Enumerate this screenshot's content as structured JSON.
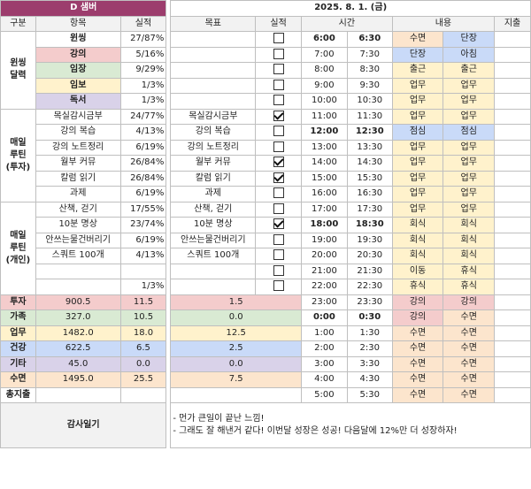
{
  "header": {
    "section_title": "D 샘버",
    "date": "2025. 8. 1. (금)",
    "left_cols": [
      "구분",
      "항목",
      "실적"
    ],
    "right_cols": [
      "목표",
      "실적",
      "시간",
      "내용",
      "지출"
    ]
  },
  "categories": {
    "wins": "윈씽\n달력",
    "invest": "매일\n루틴\n(투자)",
    "pleasure": "매일\n루틴\n(개인)"
  },
  "colors": {
    "banner": "#9c3d6d",
    "pink": "#f4cccc",
    "green": "#d9ead3",
    "yellow": "#fff2cc",
    "purple": "#d9d2e9",
    "orange": "#fce5cd",
    "blue": "#c9daf8",
    "gray": "#efefef"
  },
  "rows": [
    {
      "item": "윈씽",
      "item_bold": true,
      "item_bg": "",
      "result": "27/87%",
      "goal": "",
      "check": false,
      "start": "6:00",
      "end": "6:30",
      "time_bold": true,
      "plan": "수면",
      "plan_bg": "orange",
      "actual": "단장",
      "actual_bg": "blue"
    },
    {
      "item": "강의",
      "item_bold": true,
      "item_bg": "pink",
      "result": "5/16%",
      "goal": "",
      "check": false,
      "start": "7:00",
      "end": "7:30",
      "time_bold": false,
      "plan": "단장",
      "plan_bg": "blue",
      "actual": "아침",
      "actual_bg": "blue"
    },
    {
      "item": "임장",
      "item_bold": true,
      "item_bg": "green",
      "result": "9/29%",
      "goal": "",
      "check": false,
      "start": "8:00",
      "end": "8:30",
      "time_bold": false,
      "plan": "출근",
      "plan_bg": "yellow",
      "actual": "출근",
      "actual_bg": "yellow"
    },
    {
      "item": "임보",
      "item_bold": true,
      "item_bg": "yellow",
      "result": "1/3%",
      "goal": "",
      "check": false,
      "start": "9:00",
      "end": "9:30",
      "time_bold": false,
      "plan": "업무",
      "plan_bg": "yellow",
      "actual": "업무",
      "actual_bg": "yellow"
    },
    {
      "item": "독서",
      "item_bold": true,
      "item_bg": "purple",
      "result": "1/3%",
      "goal": "",
      "check": false,
      "start": "10:00",
      "end": "10:30",
      "time_bold": false,
      "plan": "업무",
      "plan_bg": "yellow",
      "actual": "업무",
      "actual_bg": "yellow"
    },
    {
      "item": "목실감시금부",
      "item_bold": false,
      "item_bg": "",
      "result": "24/77%",
      "goal": "목실감시금부",
      "check": true,
      "start": "11:00",
      "end": "11:30",
      "time_bold": false,
      "plan": "업무",
      "plan_bg": "yellow",
      "actual": "업무",
      "actual_bg": "yellow"
    },
    {
      "item": "강의 복습",
      "item_bold": false,
      "item_bg": "",
      "result": "4/13%",
      "goal": "강의 복습",
      "check": false,
      "start": "12:00",
      "end": "12:30",
      "time_bold": true,
      "plan": "점심",
      "plan_bg": "blue",
      "actual": "점심",
      "actual_bg": "blue"
    },
    {
      "item": "강의 노트정리",
      "item_bold": false,
      "item_bg": "",
      "result": "6/19%",
      "goal": "강의 노트정리",
      "check": false,
      "start": "13:00",
      "end": "13:30",
      "time_bold": false,
      "plan": "업무",
      "plan_bg": "yellow",
      "actual": "업무",
      "actual_bg": "yellow"
    },
    {
      "item": "월부 커뮤",
      "item_bold": false,
      "item_bg": "",
      "result": "26/84%",
      "goal": "월부 커뮤",
      "check": true,
      "start": "14:00",
      "end": "14:30",
      "time_bold": false,
      "plan": "업무",
      "plan_bg": "yellow",
      "actual": "업무",
      "actual_bg": "yellow"
    },
    {
      "item": "칼럼 읽기",
      "item_bold": false,
      "item_bg": "",
      "result": "26/84%",
      "goal": "칼럼 읽기",
      "check": true,
      "start": "15:00",
      "end": "15:30",
      "time_bold": false,
      "plan": "업무",
      "plan_bg": "yellow",
      "actual": "업무",
      "actual_bg": "yellow"
    },
    {
      "item": "과제",
      "item_bold": false,
      "item_bg": "",
      "result": "6/19%",
      "goal": "과제",
      "check": false,
      "start": "16:00",
      "end": "16:30",
      "time_bold": false,
      "plan": "업무",
      "plan_bg": "yellow",
      "actual": "업무",
      "actual_bg": "yellow"
    },
    {
      "item": "산책, 걷기",
      "item_bold": false,
      "item_bg": "",
      "result": "17/55%",
      "goal": "산책, 걷기",
      "check": false,
      "start": "17:00",
      "end": "17:30",
      "time_bold": false,
      "plan": "업무",
      "plan_bg": "yellow",
      "actual": "업무",
      "actual_bg": "yellow"
    },
    {
      "item": "10분 명상",
      "item_bold": false,
      "item_bg": "",
      "result": "23/74%",
      "goal": "10분 명상",
      "check": true,
      "start": "18:00",
      "end": "18:30",
      "time_bold": true,
      "plan": "회식",
      "plan_bg": "yellow",
      "actual": "회식",
      "actual_bg": "yellow"
    },
    {
      "item": "안쓰는물건버리기",
      "item_bold": false,
      "item_bg": "",
      "result": "6/19%",
      "goal": "안쓰는물건버리기",
      "check": false,
      "start": "19:00",
      "end": "19:30",
      "time_bold": false,
      "plan": "회식",
      "plan_bg": "yellow",
      "actual": "회식",
      "actual_bg": "yellow"
    },
    {
      "item": "스쿼트 100개",
      "item_bold": false,
      "item_bg": "",
      "result": "4/13%",
      "goal": "스쿼트 100개",
      "check": false,
      "start": "20:00",
      "end": "20:30",
      "time_bold": false,
      "plan": "회식",
      "plan_bg": "yellow",
      "actual": "회식",
      "actual_bg": "yellow"
    },
    {
      "item": "",
      "item_bold": false,
      "item_bg": "",
      "result": "",
      "goal": "",
      "check": false,
      "start": "21:00",
      "end": "21:30",
      "time_bold": false,
      "plan": "이동",
      "plan_bg": "yellow",
      "actual": "휴식",
      "actual_bg": "yellow"
    },
    {
      "item": "",
      "item_bold": false,
      "item_bg": "",
      "result": "1/3%",
      "goal": "",
      "check": false,
      "start": "22:00",
      "end": "22:30",
      "time_bold": false,
      "plan": "휴식",
      "plan_bg": "yellow",
      "actual": "휴식",
      "actual_bg": "yellow"
    }
  ],
  "summary": [
    {
      "label": "투자",
      "label_bg": "pink",
      "total": "900.5",
      "daily": "11.5",
      "goal": "1.5",
      "start": "23:00",
      "end": "23:30",
      "time_bold": false,
      "plan": "강의",
      "plan_bg": "pink",
      "actual": "강의",
      "actual_bg": "pink"
    },
    {
      "label": "가족",
      "label_bg": "green",
      "total": "327.0",
      "daily": "10.5",
      "goal": "0.0",
      "start": "0:00",
      "end": "0:30",
      "time_bold": true,
      "plan": "강의",
      "plan_bg": "pink",
      "actual": "수면",
      "actual_bg": "orange"
    },
    {
      "label": "업무",
      "label_bg": "yellow",
      "total": "1482.0",
      "daily": "18.0",
      "goal": "12.5",
      "start": "1:00",
      "end": "1:30",
      "time_bold": false,
      "plan": "수면",
      "plan_bg": "orange",
      "actual": "수면",
      "actual_bg": "orange"
    },
    {
      "label": "건강",
      "label_bg": "blue",
      "total": "622.5",
      "daily": "6.5",
      "goal": "2.5",
      "start": "2:00",
      "end": "2:30",
      "time_bold": false,
      "plan": "수면",
      "plan_bg": "orange",
      "actual": "수면",
      "actual_bg": "orange"
    },
    {
      "label": "기타",
      "label_bg": "purple",
      "total": "45.0",
      "daily": "0.0",
      "goal": "0.0",
      "start": "3:00",
      "end": "3:30",
      "time_bold": false,
      "plan": "수면",
      "plan_bg": "orange",
      "actual": "수면",
      "actual_bg": "orange"
    },
    {
      "label": "수면",
      "label_bg": "orange",
      "total": "1495.0",
      "daily": "25.5",
      "goal": "7.5",
      "start": "4:00",
      "end": "4:30",
      "time_bold": false,
      "plan": "수면",
      "plan_bg": "orange",
      "actual": "수면",
      "actual_bg": "orange"
    },
    {
      "label": "총지출",
      "label_bg": "",
      "total": "",
      "daily": "",
      "goal": "",
      "start": "5:00",
      "end": "5:30",
      "time_bold": false,
      "plan": "수면",
      "plan_bg": "orange",
      "actual": "수면",
      "actual_bg": "orange"
    }
  ],
  "gratitude": {
    "label": "감사일기",
    "lines": [
      "- 먼가 큰일이 끝난 느낌!",
      "- 그래도 잘 해낸거 같다! 이번달 성장은 성공! 다음달에 12%만 더 성장하자!"
    ]
  }
}
